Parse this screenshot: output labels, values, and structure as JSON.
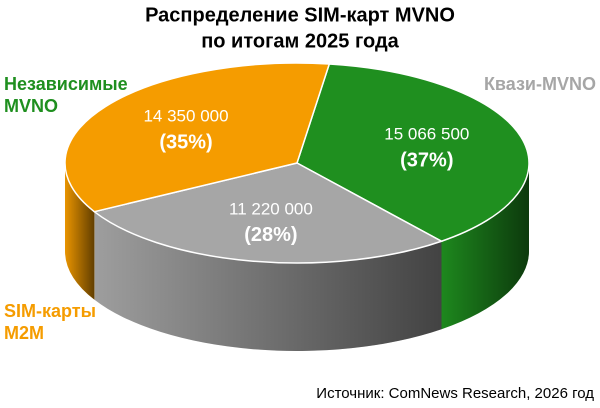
{
  "chart_data": {
    "type": "pie3d",
    "title": [
      "Распределение SIM-карт MVNO",
      "по итогам 2025 года"
    ],
    "categories": [
      [
        "Независимые",
        "MVNO"
      ],
      [
        "Квази-MVNO"
      ],
      [
        "SIM-карты",
        "M2M"
      ]
    ],
    "values": [
      15066500,
      11220000,
      14350000
    ],
    "value_labels": [
      "15 066 500",
      "11 220 000",
      "14 350 000"
    ],
    "percent_labels": [
      "(37%)",
      "(28%)",
      "(35%)"
    ],
    "colors": [
      "#1f8f1f",
      "#a6a6a6",
      "#f59c00"
    ],
    "source": "Источник: ComNews Research, 2026 год"
  }
}
